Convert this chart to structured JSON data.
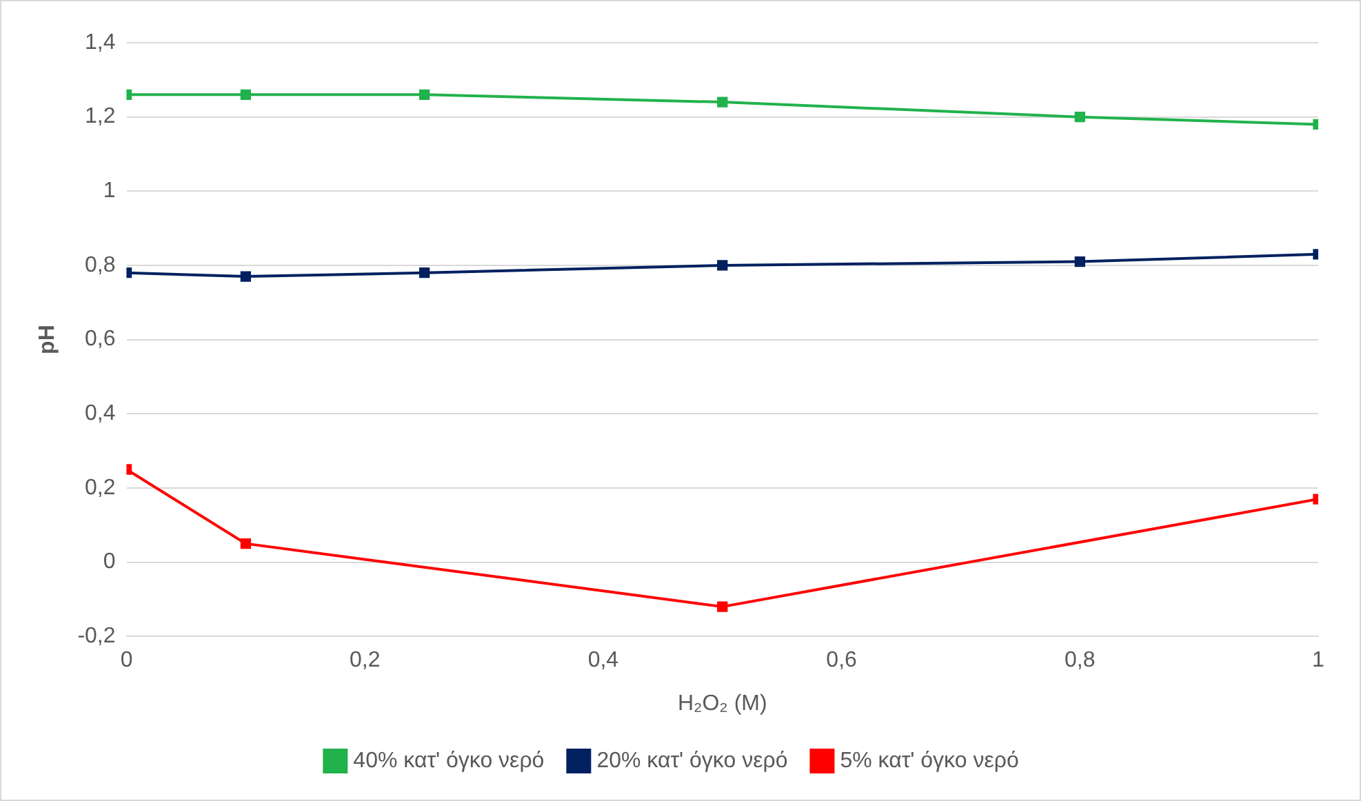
{
  "chart_data": {
    "type": "line",
    "xlabel": "H₂O₂ (M)",
    "ylabel": "pH",
    "xlim": [
      0,
      1
    ],
    "xticks": [
      0,
      {
        "value": 0.2,
        "label": "0,2"
      },
      {
        "value": 0.4,
        "label": "0,4"
      },
      {
        "value": 0.6,
        "label": "0,6"
      },
      {
        "value": 0.8,
        "label": "0,8"
      },
      1
    ],
    "ylim": [
      -0.2,
      1.4
    ],
    "yticks": [
      {
        "value": -0.2,
        "label": "-0,2"
      },
      0,
      {
        "value": 0.2,
        "label": "0,2"
      },
      {
        "value": 0.4,
        "label": "0,4"
      },
      {
        "value": 0.6,
        "label": "0,6"
      },
      {
        "value": 0.8,
        "label": "0,8"
      },
      1,
      {
        "value": 1.2,
        "label": "1,2"
      },
      {
        "value": 1.4,
        "label": "1,4"
      }
    ],
    "grid": "y",
    "legend": "bottom",
    "marker": "square",
    "line_style": "solid",
    "series": [
      {
        "name": "40% κατ' όγκο νερό",
        "color": "#21b24b",
        "x": [
          0,
          0.1,
          0.25,
          0.5,
          0.8,
          1
        ],
        "values": [
          1.26,
          1.26,
          1.26,
          1.24,
          1.2,
          1.18
        ]
      },
      {
        "name": "20% κατ' όγκο νερό",
        "color": "#002060",
        "x": [
          0,
          0.1,
          0.25,
          0.5,
          0.8,
          1
        ],
        "values": [
          0.78,
          0.77,
          0.78,
          0.8,
          0.81,
          0.83
        ]
      },
      {
        "name": "5% κατ' όγκο νερό",
        "color": "#ff0000",
        "x": [
          0,
          0.1,
          0.5,
          1
        ],
        "values": [
          0.25,
          0.05,
          -0.12,
          0.17
        ]
      }
    ]
  }
}
